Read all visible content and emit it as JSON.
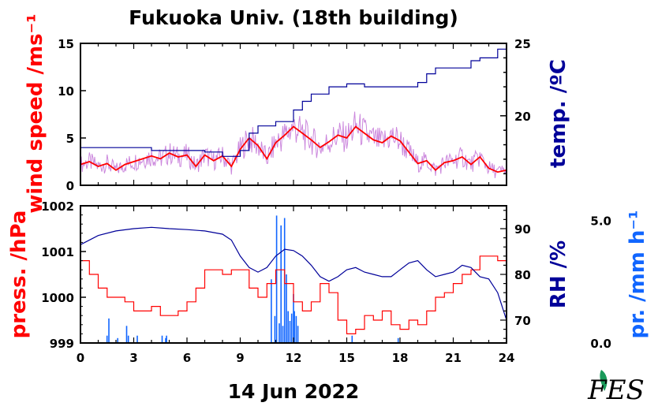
{
  "chart_data": [
    {
      "type": "line",
      "title": "Fukuoka Univ. (18th building)",
      "ylabel": "wind speed /ms⁻¹",
      "y2label": "temp. /ºC",
      "xlim": [
        0,
        24
      ],
      "ylim": [
        0,
        15
      ],
      "y2lim": [
        15.2,
        25
      ],
      "yticks": [
        "0",
        "5",
        "10",
        "15"
      ],
      "y2ticks": [
        "20",
        "25"
      ],
      "colors": {
        "wind": "#ff0000",
        "wind_raw": "#cc88dd",
        "temp": "#000099"
      },
      "series": [
        {
          "axis": "left",
          "x": [
            0,
            0.5,
            1,
            1.5,
            2,
            2.5,
            3,
            3.5,
            4,
            4.5,
            5,
            5.5,
            6,
            6.5,
            7,
            7.5,
            8,
            8.5,
            9,
            9.5,
            10,
            10.5,
            11,
            11.5,
            12,
            12.5,
            13,
            13.5,
            14,
            14.5,
            15,
            15.5,
            16,
            16.5,
            17,
            17.5,
            18,
            18.5,
            19,
            19.5,
            20,
            20.5,
            21,
            21.5,
            22,
            22.5,
            23,
            23.5,
            24
          ],
          "values": [
            2.2,
            2.5,
            2.0,
            2.3,
            1.6,
            2.2,
            2.5,
            2.8,
            3.1,
            2.8,
            3.4,
            3.0,
            3.2,
            2.0,
            3.2,
            2.6,
            3.1,
            2.0,
            3.8,
            5.0,
            4.2,
            2.8,
            4.5,
            5.3,
            6.2,
            5.5,
            4.8,
            4.0,
            4.6,
            5.3,
            5.0,
            6.2,
            5.5,
            4.8,
            4.5,
            5.2,
            4.7,
            3.5,
            2.3,
            2.6,
            1.6,
            2.4,
            2.6,
            3.0,
            2.2,
            3.0,
            1.8,
            1.4,
            1.6
          ]
        },
        {
          "axis": "right",
          "x": [
            0,
            2,
            4,
            6,
            7,
            8,
            9,
            9.5,
            10,
            11,
            12,
            12.5,
            13,
            14,
            15,
            16,
            17,
            18,
            19,
            19.5,
            20,
            21,
            22,
            22.5,
            23,
            23.5,
            24
          ],
          "values": [
            17.8,
            17.8,
            17.6,
            17.6,
            17.5,
            17.2,
            17.6,
            18.8,
            19.3,
            19.6,
            20.4,
            21.0,
            21.5,
            22.0,
            22.2,
            22.0,
            22.0,
            22.0,
            22.3,
            22.9,
            23.3,
            23.3,
            23.8,
            24.0,
            24.0,
            24.6,
            24.6
          ]
        }
      ]
    },
    {
      "type": "line",
      "xlabel": "14 Jun 2022",
      "ylabel": "press. /hPa",
      "y2label": "RH /%",
      "y3label": "pr. /mm h⁻¹",
      "xlim": [
        0,
        24
      ],
      "xticks": [
        "0",
        "3",
        "6",
        "9",
        "12",
        "15",
        "18",
        "21",
        "24"
      ],
      "ylim": [
        999,
        1002
      ],
      "yticks": [
        "999",
        "1000",
        "1001",
        "1002"
      ],
      "y2lim": [
        65,
        95
      ],
      "y2ticks": [
        "70",
        "80",
        "90"
      ],
      "y3lim": [
        0,
        5.6
      ],
      "y3ticks": [
        "0.0",
        "5.0"
      ],
      "colors": {
        "pressure": "#ff0000",
        "rh": "#000099",
        "precip": "#1166ff"
      },
      "series": [
        {
          "axis": "left",
          "x": [
            0,
            0.5,
            1,
            1.5,
            2,
            2.5,
            3,
            3.5,
            4,
            4.5,
            5,
            5.5,
            6,
            6.5,
            7,
            7.5,
            8,
            8.5,
            9,
            9.5,
            10,
            10.5,
            11,
            11.5,
            12,
            12.5,
            13,
            13.5,
            14,
            14.5,
            15,
            15.5,
            16,
            16.5,
            17,
            17.5,
            18,
            18.5,
            19,
            19.5,
            20,
            20.5,
            21,
            21.5,
            22,
            22.5,
            23,
            23.5,
            24
          ],
          "values": [
            1000.8,
            1000.5,
            1000.2,
            1000.0,
            1000.0,
            999.9,
            999.7,
            999.7,
            999.8,
            999.6,
            999.6,
            999.7,
            999.9,
            1000.2,
            1000.6,
            1000.6,
            1000.5,
            1000.6,
            1000.6,
            1000.2,
            1000.0,
            1000.3,
            1000.6,
            1000.3,
            999.9,
            999.7,
            999.9,
            1000.3,
            1000.1,
            999.5,
            999.2,
            999.3,
            999.6,
            999.5,
            999.7,
            999.4,
            999.3,
            999.5,
            999.4,
            999.7,
            1000.0,
            1000.1,
            1000.3,
            1000.5,
            1000.6,
            1000.9,
            1000.9,
            1000.8,
            1000.5
          ]
        },
        {
          "axis": "right",
          "x": [
            0,
            1,
            2,
            3,
            4,
            5,
            6,
            7,
            8,
            8.5,
            9,
            9.5,
            10,
            10.5,
            11,
            11.5,
            12,
            12.5,
            13,
            13.5,
            14,
            14.5,
            15,
            15.5,
            16,
            16.5,
            17,
            17.5,
            18,
            18.5,
            19,
            19.5,
            20,
            20.5,
            21,
            21.5,
            22,
            22.5,
            23,
            23.5,
            24
          ],
          "values": [
            86.5,
            88.5,
            89.5,
            90,
            90.3,
            90,
            89.8,
            89.5,
            88.8,
            87.5,
            84,
            81.5,
            80.5,
            81.5,
            84,
            85.5,
            85.2,
            84,
            82,
            79.5,
            78.5,
            79.5,
            81,
            81.5,
            80.5,
            80,
            79.5,
            79.5,
            81,
            82.5,
            83,
            81,
            79.5,
            80,
            80.5,
            82,
            81.5,
            79.5,
            79,
            76,
            70
          ]
        },
        {
          "axis": "y3",
          "type": "bar",
          "x": [
            1.5,
            1.6,
            2.1,
            2.6,
            2.7,
            3.2,
            4.6,
            4.8,
            4.85,
            10.75,
            10.95,
            11.05,
            11.2,
            11.3,
            11.4,
            11.5,
            11.6,
            11.7,
            11.8,
            11.9,
            12.0,
            12.05,
            12.15,
            12.25,
            15.3,
            17.9
          ],
          "values": [
            0.3,
            1.0,
            0.2,
            0.7,
            0.3,
            0.3,
            0.3,
            0.2,
            0.3,
            2.6,
            1.1,
            5.2,
            0.8,
            4.8,
            0.7,
            5.1,
            2.8,
            1.3,
            0.9,
            1.2,
            2.0,
            1.3,
            1.1,
            0.7,
            0.3,
            0.2
          ]
        }
      ]
    }
  ],
  "logo": {
    "text": "FES"
  }
}
